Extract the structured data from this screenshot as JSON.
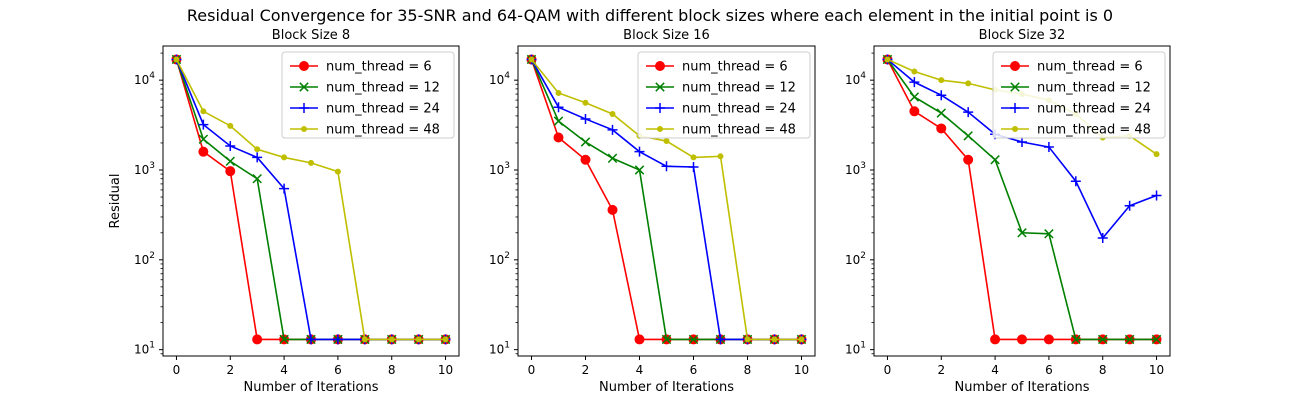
{
  "figure": {
    "suptitle": "Residual Convergence for 35-SNR and 64-QAM with different block sizes where each element in the initial point is 0"
  },
  "chart_data": [
    {
      "type": "line",
      "title": "Block Size 8",
      "xlabel": "Number of Iterations",
      "ylabel": "Residual",
      "yscale": "log",
      "xlim": [
        -0.5,
        10.5
      ],
      "ylim": [
        8.5,
        24000
      ],
      "xticks": [
        0,
        2,
        4,
        6,
        8,
        10
      ],
      "yticks": [
        10,
        100,
        1000,
        10000
      ],
      "ytick_labels": [
        "10^1",
        "10^2",
        "10^3",
        "10^4"
      ],
      "legend": "top-right",
      "grid": false,
      "x": [
        0,
        1,
        2,
        3,
        4,
        5,
        6,
        7,
        8,
        9,
        10
      ],
      "series": [
        {
          "name": "num_thread = 6",
          "color": "#ff0000",
          "marker": "circle",
          "values": [
            17000,
            1600,
            970,
            13,
            13,
            13,
            13,
            13,
            13,
            13,
            13
          ]
        },
        {
          "name": "num_thread = 12",
          "color": "#008000",
          "marker": "x",
          "values": [
            17000,
            2200,
            1250,
            800,
            13,
            13,
            13,
            13,
            13,
            13,
            13
          ]
        },
        {
          "name": "num_thread = 24",
          "color": "#0000ff",
          "marker": "plus",
          "values": [
            17000,
            3200,
            1850,
            1380,
            620,
            13,
            13,
            13,
            13,
            13,
            13
          ]
        },
        {
          "name": "num_thread = 48",
          "color": "#bfbf00",
          "marker": "dot",
          "values": [
            17000,
            4500,
            3100,
            1700,
            1380,
            1200,
            960,
            13,
            13,
            13,
            13
          ]
        }
      ]
    },
    {
      "type": "line",
      "title": "Block Size 16",
      "xlabel": "Number of Iterations",
      "ylabel": "",
      "yscale": "log",
      "xlim": [
        -0.5,
        10.5
      ],
      "ylim": [
        8.5,
        24000
      ],
      "xticks": [
        0,
        2,
        4,
        6,
        8,
        10
      ],
      "yticks": [
        10,
        100,
        1000,
        10000
      ],
      "ytick_labels": [
        "10^1",
        "10^2",
        "10^3",
        "10^4"
      ],
      "legend": "top-right",
      "grid": false,
      "x": [
        0,
        1,
        2,
        3,
        4,
        5,
        6,
        7,
        8,
        9,
        10
      ],
      "series": [
        {
          "name": "num_thread = 6",
          "color": "#ff0000",
          "marker": "circle",
          "values": [
            17000,
            2300,
            1300,
            360,
            13,
            13,
            13,
            13,
            13,
            13,
            13
          ]
        },
        {
          "name": "num_thread = 12",
          "color": "#008000",
          "marker": "x",
          "values": [
            17000,
            3500,
            2050,
            1350,
            1000,
            13,
            13,
            13,
            13,
            13,
            13
          ]
        },
        {
          "name": "num_thread = 24",
          "color": "#0000ff",
          "marker": "plus",
          "values": [
            17000,
            5000,
            3700,
            2800,
            1600,
            1100,
            1080,
            13,
            13,
            13,
            13
          ]
        },
        {
          "name": "num_thread = 48",
          "color": "#bfbf00",
          "marker": "dot",
          "values": [
            17000,
            7200,
            5600,
            4200,
            2400,
            2100,
            1380,
            1420,
            13,
            13,
            13
          ]
        }
      ]
    },
    {
      "type": "line",
      "title": "Block Size 32",
      "xlabel": "Number of Iterations",
      "ylabel": "",
      "yscale": "log",
      "xlim": [
        -0.5,
        10.5
      ],
      "ylim": [
        8.5,
        24000
      ],
      "xticks": [
        0,
        2,
        4,
        6,
        8,
        10
      ],
      "yticks": [
        10,
        100,
        1000,
        10000
      ],
      "ytick_labels": [
        "10^1",
        "10^2",
        "10^3",
        "10^4"
      ],
      "legend": "top-right",
      "grid": false,
      "x": [
        0,
        1,
        2,
        3,
        4,
        5,
        6,
        7,
        8,
        9,
        10
      ],
      "series": [
        {
          "name": "num_thread = 6",
          "color": "#ff0000",
          "marker": "circle",
          "values": [
            17000,
            4500,
            2900,
            1300,
            13,
            13,
            13,
            13,
            13,
            13,
            13
          ]
        },
        {
          "name": "num_thread = 12",
          "color": "#008000",
          "marker": "x",
          "values": [
            17000,
            6500,
            4300,
            2400,
            1300,
            200,
            195,
            13,
            13,
            13,
            13
          ]
        },
        {
          "name": "num_thread = 24",
          "color": "#0000ff",
          "marker": "plus",
          "values": [
            17000,
            9500,
            6800,
            4400,
            2500,
            2050,
            1800,
            750,
            175,
            400,
            520
          ]
        },
        {
          "name": "num_thread = 48",
          "color": "#bfbf00",
          "marker": "dot",
          "values": [
            17000,
            12500,
            10000,
            9200,
            7800,
            7000,
            6000,
            4200,
            2300,
            2400,
            1500
          ]
        }
      ]
    }
  ]
}
